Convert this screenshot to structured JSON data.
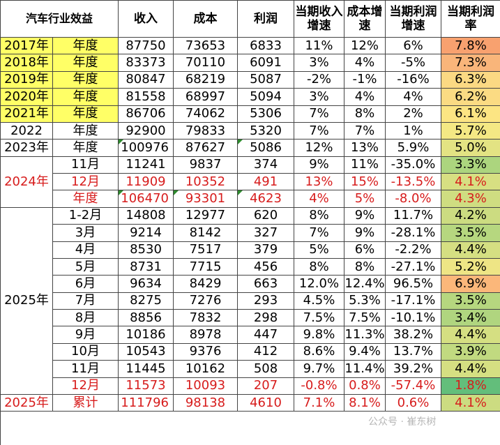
{
  "header": {
    "title": "汽车行业效益",
    "columns": [
      "收入",
      "成本",
      "利润",
      "当期收入增速",
      "成本增速",
      "当期利润增速",
      "当期利润率"
    ]
  },
  "period_labels": [
    "2024年",
    "2025年"
  ],
  "rows": [
    {
      "year": "2017年",
      "period": "年度",
      "income": "87750",
      "cost": "73653",
      "profit": "6833",
      "inc_g": "11%",
      "cost_g": "12%",
      "prof_g": "6%",
      "margin": "7.8%"
    },
    {
      "year": "2018年",
      "period": "年度",
      "income": "83373",
      "cost": "70110",
      "profit": "6091",
      "inc_g": "3%",
      "cost_g": "4%",
      "prof_g": "-5%",
      "margin": "7.3%"
    },
    {
      "year": "2019年",
      "period": "年度",
      "income": "80847",
      "cost": "68219",
      "profit": "5087",
      "inc_g": "-2%",
      "cost_g": "-1%",
      "prof_g": "-16%",
      "margin": "6.3%"
    },
    {
      "year": "2020年",
      "period": "年度",
      "income": "81558",
      "cost": "68997",
      "profit": "5094",
      "inc_g": "3%",
      "cost_g": "4%",
      "prof_g": "4%",
      "margin": "6.2%"
    },
    {
      "year": "2021年",
      "period": "年度",
      "income": "86706",
      "cost": "74062",
      "profit": "5306",
      "inc_g": "7%",
      "cost_g": "8%",
      "prof_g": "2%",
      "margin": "6.1%"
    },
    {
      "year": "2022",
      "period": "年度",
      "income": "92900",
      "cost": "79833",
      "profit": "5320",
      "inc_g": "7%",
      "cost_g": "7%",
      "prof_g": "1%",
      "margin": "5.7%"
    },
    {
      "year": "2023年",
      "period": "年度",
      "income": "100976",
      "cost": "87627",
      "profit": "5086",
      "inc_g": "12%",
      "cost_g": "13%",
      "prof_g": "5.9%",
      "margin": "5.0%"
    },
    {
      "period": "11月",
      "income": "11241",
      "cost": "9837",
      "profit": "374",
      "inc_g": "9%",
      "cost_g": "11%",
      "prof_g": "-35.0%",
      "margin": "3.3%"
    },
    {
      "period": "12月",
      "income": "11909",
      "cost": "10352",
      "profit": "491",
      "inc_g": "13%",
      "cost_g": "15%",
      "prof_g": "-13.5%",
      "margin": "4.1%"
    },
    {
      "period": "年度",
      "income": "106470",
      "cost": "93301",
      "profit": "4623",
      "inc_g": "4%",
      "cost_g": "5%",
      "prof_g": "-8.0%",
      "margin": "4.3%"
    },
    {
      "period": "1-2月",
      "income": "14808",
      "cost": "12977",
      "profit": "620",
      "inc_g": "8%",
      "cost_g": "9%",
      "prof_g": "11.7%",
      "margin": "4.2%"
    },
    {
      "period": "3月",
      "income": "9214",
      "cost": "8142",
      "profit": "327",
      "inc_g": "7%",
      "cost_g": "9%",
      "prof_g": "-28.1%",
      "margin": "3.5%"
    },
    {
      "period": "4月",
      "income": "8530",
      "cost": "7517",
      "profit": "379",
      "inc_g": "5%",
      "cost_g": "6%",
      "prof_g": "-2.2%",
      "margin": "4.4%"
    },
    {
      "period": "5月",
      "income": "8731",
      "cost": "7715",
      "profit": "456",
      "inc_g": "8%",
      "cost_g": "8%",
      "prof_g": "-27.1%",
      "margin": "5.2%"
    },
    {
      "period": "6月",
      "income": "9634",
      "cost": "8429",
      "profit": "663",
      "inc_g": "12.0%",
      "cost_g": "12.4%",
      "prof_g": "96.5%",
      "margin": "6.9%"
    },
    {
      "period": "7月",
      "income": "8275",
      "cost": "7276",
      "profit": "293",
      "inc_g": "4.5%",
      "cost_g": "5.3%",
      "prof_g": "-17.1%",
      "margin": "3.5%"
    },
    {
      "period": "8月",
      "income": "8856",
      "cost": "7832",
      "profit": "298",
      "inc_g": "7.5%",
      "cost_g": "7.5%",
      "prof_g": "-10.1%",
      "margin": "3.4%"
    },
    {
      "period": "9月",
      "income": "10186",
      "cost": "8978",
      "profit": "447",
      "inc_g": "9.8%",
      "cost_g": "11.3%",
      "prof_g": "38.2%",
      "margin": "4.4%"
    },
    {
      "period": "10月",
      "income": "10543",
      "cost": "9376",
      "profit": "412",
      "inc_g": "8.6%",
      "cost_g": "9.4%",
      "prof_g": "13.7%",
      "margin": "3.9%"
    },
    {
      "period": "11月",
      "income": "11445",
      "cost": "10162",
      "profit": "508",
      "inc_g": "9.7%",
      "cost_g": "11.4%",
      "prof_g": "39.2%",
      "margin": "4.4%"
    },
    {
      "period": "12月",
      "income": "11573",
      "cost": "10093",
      "profit": "207",
      "inc_g": "-0.8%",
      "cost_g": "0.8%",
      "prof_g": "-57.4%",
      "margin": "1.8%"
    },
    {
      "year": "2025年",
      "period": "累计",
      "income": "111796",
      "cost": "98138",
      "profit": "4610",
      "inc_g": "7.1%",
      "cost_g": "8.1%",
      "prof_g": "0.6%",
      "margin": "4.1%"
    }
  ],
  "margin_colors": [
    "#f8a16f",
    "#f9b57a",
    "#fbd983",
    "#fbdb83",
    "#fce583",
    "#f4e884",
    "#e3e383",
    "#acd57e",
    "#d7df82",
    "#cfdd81",
    "#ccdc81",
    "#b6d77f",
    "#d5df82",
    "#eee585",
    "#fbb77a",
    "#b6d77f",
    "#b0d57f",
    "#d5df82",
    "#c1da80",
    "#d5df82",
    "#63be7b",
    "#ccdc81"
  ],
  "watermark": "公众号 · 崔东树"
}
